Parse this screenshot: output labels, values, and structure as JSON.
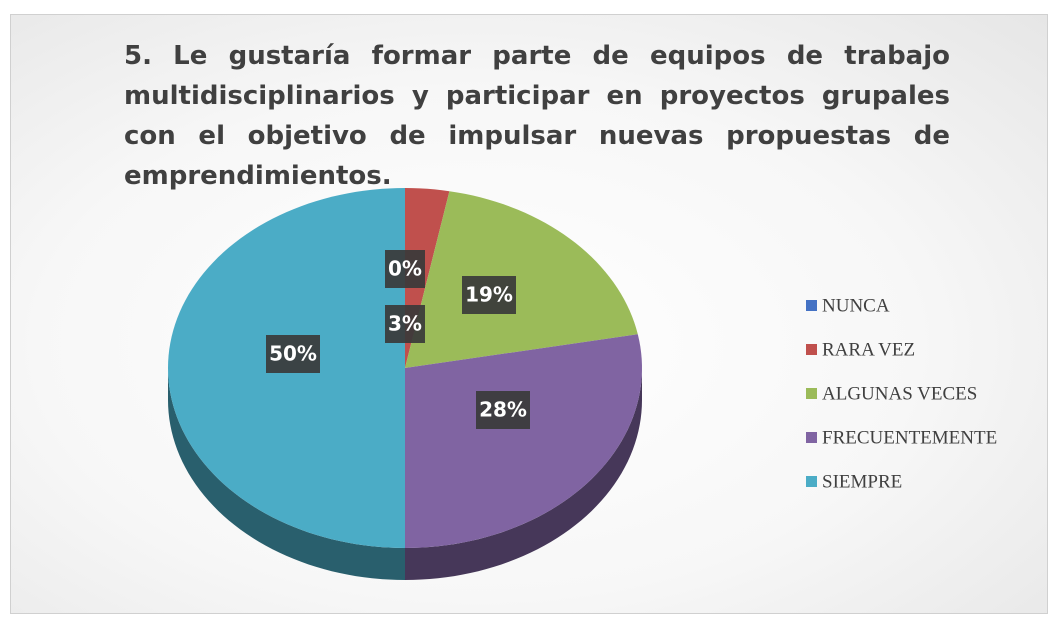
{
  "chart_data": {
    "type": "pie",
    "title": "5. Le gustaría formar parte de equipos de trabajo multidisciplinarios y participar en proyectos grupales con el objetivo de impulsar nuevas propuestas de emprendimientos.",
    "categories": [
      "NUNCA",
      "RARA VEZ",
      "ALGUNAS VECES",
      "FRECUENTEMENTE",
      "SIEMPRE"
    ],
    "values": [
      0,
      3,
      19,
      28,
      50
    ],
    "value_labels": [
      "0%",
      "3%",
      "19%",
      "28%",
      "50%"
    ],
    "colors": [
      "#4472c4",
      "#c0504d",
      "#9bbb59",
      "#8064a2",
      "#4bacc6"
    ],
    "legend": "right"
  }
}
